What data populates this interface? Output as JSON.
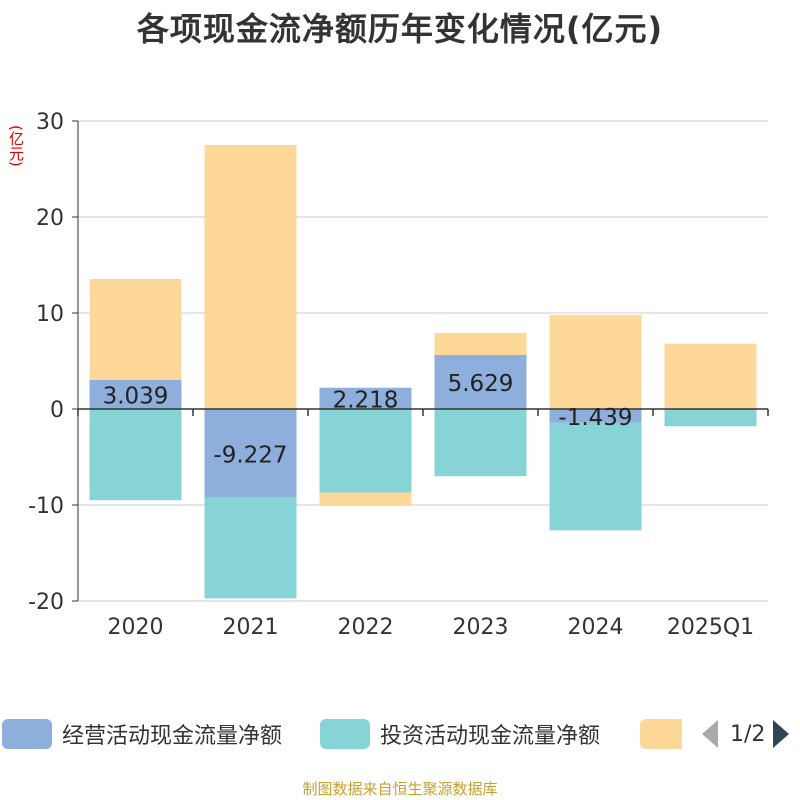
{
  "title": "各项现金流净额历年变化情况(亿元)",
  "unit_label": "(亿元)",
  "footer": "制图数据来自恒生聚源数据库",
  "legend": {
    "items": [
      {
        "label": "经营活动现金流量净额",
        "color": "#8eaedb"
      },
      {
        "label": "投资活动现金流量净额",
        "color": "#86d4d6"
      },
      {
        "label": "",
        "color": "#fdd898"
      }
    ],
    "page": "1/2"
  },
  "chart_data": {
    "type": "bar",
    "stacked": true,
    "categories": [
      "2020",
      "2021",
      "2022",
      "2023",
      "2024",
      "2025Q1"
    ],
    "series": [
      {
        "name": "经营活动现金流量净额",
        "color": "#8eaedb",
        "values": [
          3.039,
          -9.227,
          2.218,
          5.629,
          -1.439,
          0
        ],
        "labels": [
          "3.039",
          "-9.227",
          "2.218",
          "5.629",
          "-1.439",
          ""
        ]
      },
      {
        "name": "投资活动现金流量净额",
        "color": "#86d4d6",
        "values": [
          -9.5,
          -10.5,
          -8.7,
          -7.0,
          -11.2,
          -1.8
        ]
      },
      {
        "name": "",
        "color": "#fdd898",
        "values": [
          10.5,
          27.5,
          -1.4,
          2.3,
          9.8,
          6.8
        ]
      }
    ],
    "ylim": [
      -20,
      30
    ],
    "yticks": [
      30,
      20,
      10,
      0,
      -10,
      -20
    ],
    "ylabel": "(亿元)",
    "grid": true
  }
}
